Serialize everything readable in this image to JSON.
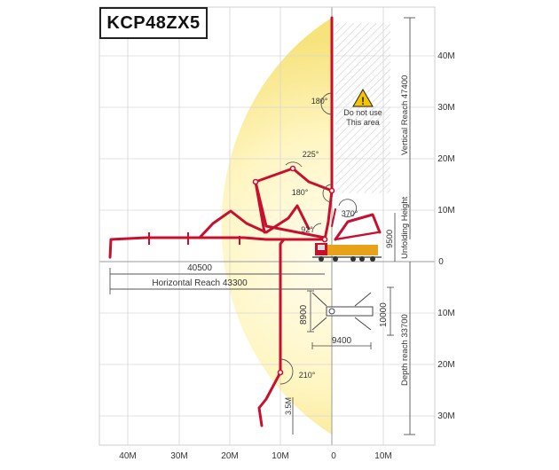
{
  "title": "KCP48ZX5",
  "x_axis_labels": [
    "40M",
    "30M",
    "20M",
    "10M",
    "0",
    "10M"
  ],
  "y_axis_labels": [
    "40M",
    "30M",
    "20M",
    "10M",
    "0",
    "10M",
    "20M",
    "30M"
  ],
  "warning": {
    "line1": "Do not use",
    "line2": "This area"
  },
  "angles": {
    "a180_top": "180°",
    "a225": "225°",
    "a180_mid": "180°",
    "a370": "370°",
    "a92": "92°",
    "a210": "210°"
  },
  "dimensions": {
    "horizontal_reach_value": "40500",
    "horizontal_reach_label": "Horizontal Reach 43300",
    "vertical_reach_label": "Vertical Reach  47400",
    "unfolding_height_label": "Unfolding Height",
    "unfolding_height_value": "9500",
    "depth_reach_label": "Depth reach 33700",
    "depth_small": "3.5M",
    "outrigger_front": "10000",
    "outrigger_rear": "8900",
    "outrigger_span": "9400"
  },
  "colors": {
    "boom": "#c8102e",
    "envelope_center": "#fff8c8",
    "envelope_edge": "#f6e27a",
    "truck": "#e8a21a"
  }
}
